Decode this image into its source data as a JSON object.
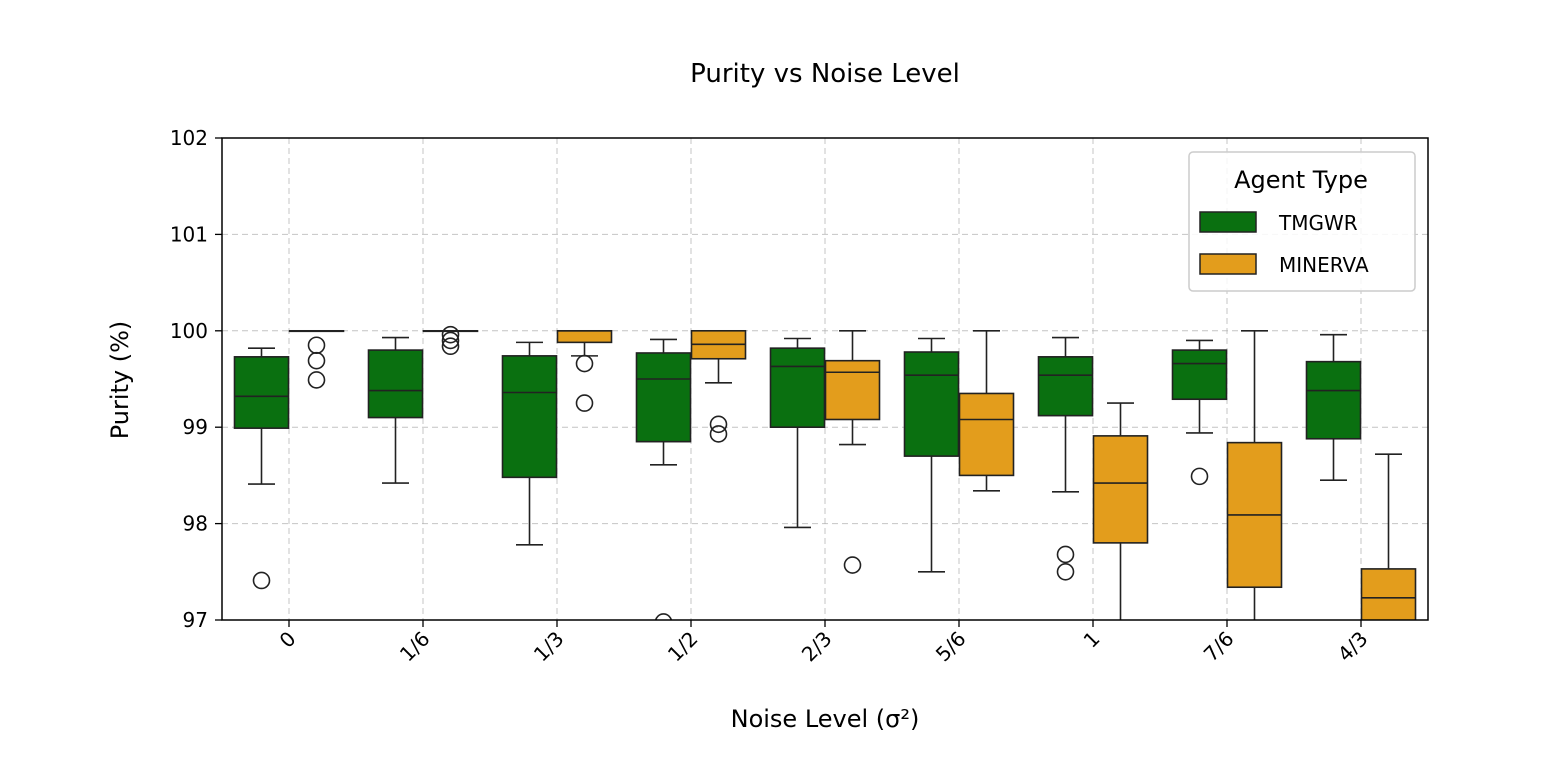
{
  "chart_data": {
    "type": "box",
    "title": "Purity vs Noise Level",
    "xlabel": "Noise Level (σ²)",
    "ylabel": "Purity (%)",
    "ylim": [
      97,
      102
    ],
    "yticks": [
      97,
      98,
      99,
      100,
      101,
      102
    ],
    "categories": [
      "0",
      "1/6",
      "1/3",
      "1/2",
      "2/3",
      "5/6",
      "1",
      "7/6",
      "4/3"
    ],
    "grid": true,
    "legend": {
      "title": "Agent Type",
      "position": "top-right"
    },
    "series": [
      {
        "name": "TMGWR",
        "color": "#0a7010",
        "boxes": [
          {
            "whisker_low": 98.41,
            "q1": 98.99,
            "median": 99.32,
            "q3": 99.73,
            "whisker_high": 99.82,
            "outliers": [
              97.41
            ]
          },
          {
            "whisker_low": 98.42,
            "q1": 99.1,
            "median": 99.38,
            "q3": 99.8,
            "whisker_high": 99.93,
            "outliers": []
          },
          {
            "whisker_low": 97.78,
            "q1": 98.48,
            "median": 99.36,
            "q3": 99.74,
            "whisker_high": 99.88,
            "outliers": []
          },
          {
            "whisker_low": 98.61,
            "q1": 98.85,
            "median": 99.5,
            "q3": 99.77,
            "whisker_high": 99.91,
            "outliers": [
              96.98
            ]
          },
          {
            "whisker_low": 97.96,
            "q1": 99.0,
            "median": 99.63,
            "q3": 99.82,
            "whisker_high": 99.92,
            "outliers": []
          },
          {
            "whisker_low": 97.5,
            "q1": 98.7,
            "median": 99.54,
            "q3": 99.78,
            "whisker_high": 99.92,
            "outliers": []
          },
          {
            "whisker_low": 98.33,
            "q1": 99.12,
            "median": 99.54,
            "q3": 99.73,
            "whisker_high": 99.93,
            "outliers": [
              97.68,
              97.5
            ]
          },
          {
            "whisker_low": 98.94,
            "q1": 99.29,
            "median": 99.66,
            "q3": 99.8,
            "whisker_high": 99.9,
            "outliers": [
              98.49
            ]
          },
          {
            "whisker_low": 98.45,
            "q1": 98.88,
            "median": 99.38,
            "q3": 99.68,
            "whisker_high": 99.96,
            "outliers": []
          }
        ]
      },
      {
        "name": "MINERVA",
        "color": "#e39d1c",
        "boxes": [
          {
            "whisker_low": 100.0,
            "q1": 100.0,
            "median": 100.0,
            "q3": 100.0,
            "whisker_high": 100.0,
            "outliers": [
              99.85,
              99.69,
              99.49
            ]
          },
          {
            "whisker_low": 100.0,
            "q1": 100.0,
            "median": 100.0,
            "q3": 100.0,
            "whisker_high": 100.0,
            "outliers": [
              99.96,
              99.9,
              99.84
            ]
          },
          {
            "whisker_low": 99.74,
            "q1": 99.88,
            "median": 100.0,
            "q3": 100.0,
            "whisker_high": 100.0,
            "outliers": [
              99.66,
              99.25
            ]
          },
          {
            "whisker_low": 99.46,
            "q1": 99.71,
            "median": 99.86,
            "q3": 100.0,
            "whisker_high": 100.0,
            "outliers": [
              99.03,
              98.93
            ]
          },
          {
            "whisker_low": 98.82,
            "q1": 99.08,
            "median": 99.57,
            "q3": 99.69,
            "whisker_high": 100.0,
            "outliers": [
              97.57
            ]
          },
          {
            "whisker_low": 98.34,
            "q1": 98.5,
            "median": 99.08,
            "q3": 99.35,
            "whisker_high": 100.0,
            "outliers": []
          },
          {
            "whisker_low": 96.8,
            "q1": 97.8,
            "median": 98.42,
            "q3": 98.91,
            "whisker_high": 99.25,
            "outliers": []
          },
          {
            "whisker_low": 96.8,
            "q1": 97.34,
            "median": 98.09,
            "q3": 98.84,
            "whisker_high": 100.0,
            "outliers": []
          },
          {
            "whisker_low": 96.8,
            "q1": 96.9,
            "median": 97.23,
            "q3": 97.53,
            "whisker_high": 98.72,
            "outliers": []
          }
        ]
      }
    ]
  }
}
